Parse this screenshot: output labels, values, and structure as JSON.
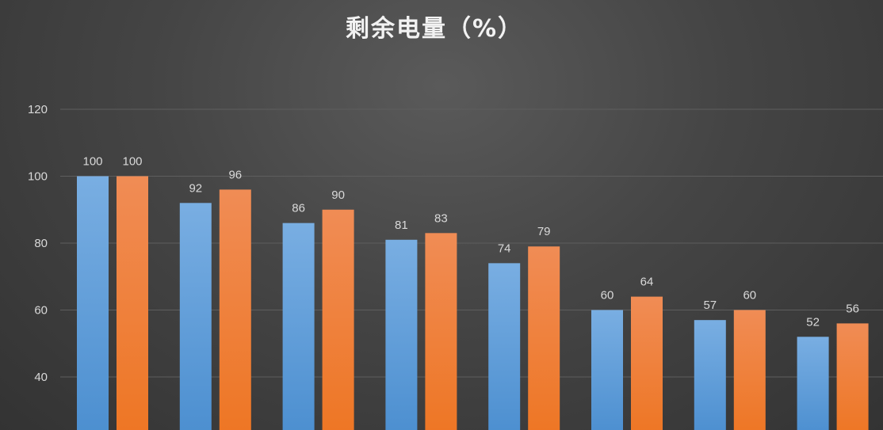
{
  "chart_data": {
    "type": "bar",
    "title": "剩余电量（%）",
    "xlabel": "",
    "ylabel": "",
    "ylim": [
      30,
      120
    ],
    "yticks": [
      40,
      60,
      80,
      100,
      120
    ],
    "grid": true,
    "series": [
      {
        "color": "#5b9bd5",
        "values": [
          100,
          92,
          86,
          81,
          74,
          60,
          57,
          52
        ]
      },
      {
        "color": "#ed7d31",
        "values": [
          100,
          96,
          90,
          83,
          79,
          64,
          60,
          56
        ]
      }
    ]
  }
}
